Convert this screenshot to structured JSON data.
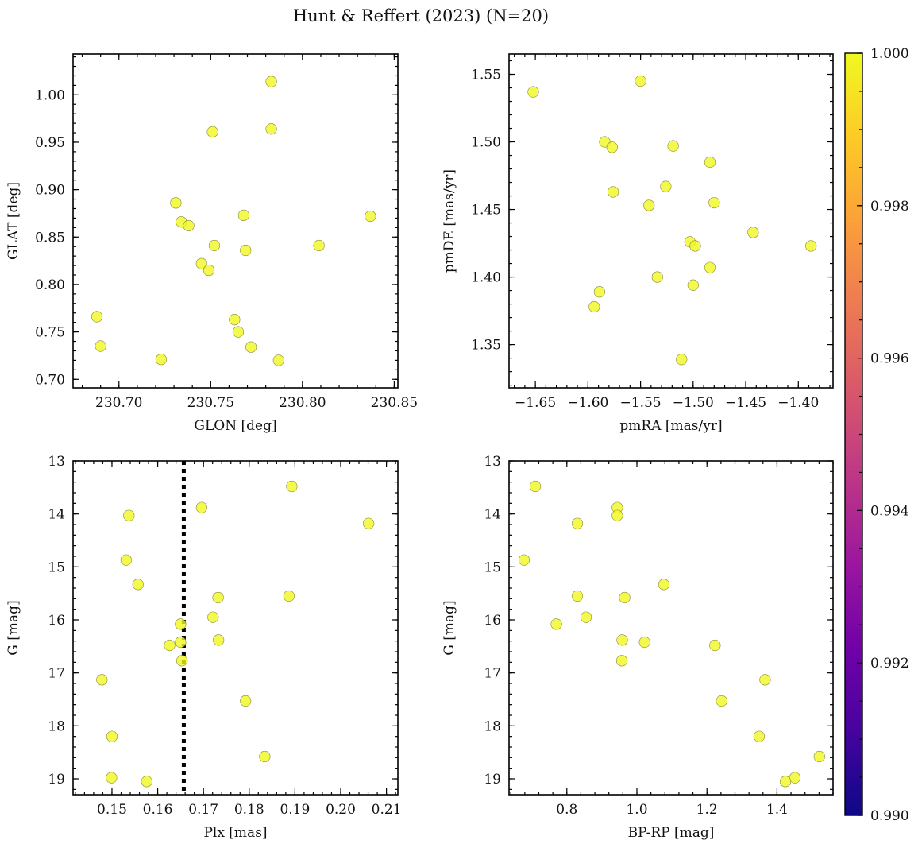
{
  "figure": {
    "title": "Hunt & Reffert (2023) (N=20)"
  },
  "chart_data": [
    {
      "type": "scatter",
      "xlabel": "GLON [deg]",
      "ylabel": "GLAT [deg]",
      "xlim": [
        230.675,
        230.852
      ],
      "ylim": [
        0.691,
        1.043
      ],
      "xticks": [
        230.7,
        230.75,
        230.8,
        230.85
      ],
      "xtick_labels": [
        "230.70",
        "230.75",
        "230.80",
        "230.85"
      ],
      "yticks": [
        0.7,
        0.75,
        0.8,
        0.85,
        0.9,
        0.95,
        1.0
      ],
      "ytick_labels": [
        "0.70",
        "0.75",
        "0.80",
        "0.85",
        "0.90",
        "0.95",
        "1.00"
      ],
      "y_inverted": false,
      "marker_color": "#f0f921",
      "x": [
        230.783,
        230.751,
        230.783,
        230.731,
        230.768,
        230.837,
        230.734,
        230.738,
        230.809,
        230.752,
        230.769,
        230.745,
        230.749,
        230.688,
        230.763,
        230.765,
        230.69,
        230.772,
        230.723,
        230.787
      ],
      "y": [
        1.014,
        0.961,
        0.964,
        0.886,
        0.873,
        0.872,
        0.866,
        0.862,
        0.841,
        0.841,
        0.836,
        0.822,
        0.815,
        0.766,
        0.763,
        0.75,
        0.735,
        0.734,
        0.721,
        0.72
      ]
    },
    {
      "type": "scatter",
      "xlabel": "pmRA [mas/yr]",
      "ylabel": "pmDE [mas/yr]",
      "xlim": [
        -1.675,
        -1.367
      ],
      "ylim": [
        1.318,
        1.565
      ],
      "xticks": [
        -1.65,
        -1.6,
        -1.55,
        -1.5,
        -1.45,
        -1.4
      ],
      "xtick_labels": [
        "−1.65",
        "−1.60",
        "−1.55",
        "−1.50",
        "−1.45",
        "−1.40"
      ],
      "yticks": [
        1.35,
        1.4,
        1.45,
        1.5,
        1.55
      ],
      "ytick_labels": [
        "1.35",
        "1.40",
        "1.45",
        "1.50",
        "1.55"
      ],
      "y_inverted": false,
      "marker_color": "#f0f921",
      "x": [
        -1.652,
        -1.55,
        -1.584,
        -1.577,
        -1.519,
        -1.484,
        -1.576,
        -1.526,
        -1.542,
        -1.48,
        -1.443,
        -1.503,
        -1.498,
        -1.388,
        -1.484,
        -1.534,
        -1.5,
        -1.589,
        -1.594,
        -1.511
      ],
      "y": [
        1.537,
        1.545,
        1.5,
        1.496,
        1.497,
        1.485,
        1.463,
        1.467,
        1.453,
        1.455,
        1.433,
        1.426,
        1.423,
        1.423,
        1.407,
        1.4,
        1.394,
        1.389,
        1.378,
        1.339
      ]
    },
    {
      "type": "scatter",
      "xlabel": "Plx [mas]",
      "ylabel": "G [mag]",
      "xlim": [
        0.1415,
        0.2125
      ],
      "ylim": [
        13.0,
        19.3
      ],
      "xticks": [
        0.15,
        0.16,
        0.17,
        0.18,
        0.19,
        0.2,
        0.21
      ],
      "xtick_labels": [
        "0.15",
        "0.16",
        "0.17",
        "0.18",
        "0.19",
        "0.20",
        "0.21"
      ],
      "yticks": [
        13,
        14,
        15,
        16,
        17,
        18,
        19
      ],
      "ytick_labels": [
        "13",
        "14",
        "15",
        "16",
        "17",
        "18",
        "19"
      ],
      "y_inverted": true,
      "vline_x": 0.1657,
      "marker_color": "#f0f921",
      "x": [
        0.1893,
        0.1696,
        0.2061,
        0.1537,
        0.1531,
        0.1557,
        0.1887,
        0.1732,
        0.1721,
        0.165,
        0.1733,
        0.165,
        0.1626,
        0.1653,
        0.1478,
        0.1792,
        0.15,
        0.1834,
        0.1499,
        0.1576
      ],
      "y": [
        13.48,
        13.88,
        14.18,
        14.03,
        14.87,
        15.33,
        15.55,
        15.58,
        15.95,
        16.08,
        16.38,
        16.42,
        16.48,
        16.77,
        17.13,
        17.53,
        18.2,
        18.58,
        18.98,
        19.05
      ]
    },
    {
      "type": "scatter",
      "xlabel": "BP-RP [mag]",
      "ylabel": "G [mag]",
      "xlim": [
        0.635,
        1.56
      ],
      "ylim": [
        13.0,
        19.3
      ],
      "xticks": [
        0.8,
        1.0,
        1.2,
        1.4
      ],
      "xtick_labels": [
        "0.8",
        "1.0",
        "1.2",
        "1.4"
      ],
      "yticks": [
        13,
        14,
        15,
        16,
        17,
        18,
        19
      ],
      "ytick_labels": [
        "13",
        "14",
        "15",
        "16",
        "17",
        "18",
        "19"
      ],
      "y_inverted": true,
      "marker_color": "#f0f921",
      "x": [
        0.71,
        0.944,
        0.83,
        0.944,
        0.678,
        1.077,
        0.83,
        0.965,
        0.855,
        0.77,
        0.958,
        1.022,
        1.223,
        0.957,
        1.366,
        1.242,
        1.349,
        1.521,
        1.451,
        1.424
      ],
      "y": [
        13.48,
        13.88,
        14.18,
        14.03,
        14.87,
        15.33,
        15.55,
        15.58,
        15.95,
        16.08,
        16.38,
        16.42,
        16.48,
        16.77,
        17.13,
        17.53,
        18.2,
        18.58,
        18.98,
        19.05
      ]
    }
  ],
  "colorbar": {
    "range": [
      0.99,
      1.0
    ],
    "ticks": [
      0.99,
      0.992,
      0.994,
      0.996,
      0.998,
      1.0
    ],
    "tick_labels": [
      "0.990",
      "0.992",
      "0.994",
      "0.996",
      "0.998",
      "1.000"
    ],
    "colormap": "plasma",
    "colormap_stops": [
      "#0d0887",
      "#46039f",
      "#7201a8",
      "#9c179e",
      "#bd3786",
      "#d8576b",
      "#ed7953",
      "#fb9f3a",
      "#fdca26",
      "#f0f921"
    ]
  }
}
